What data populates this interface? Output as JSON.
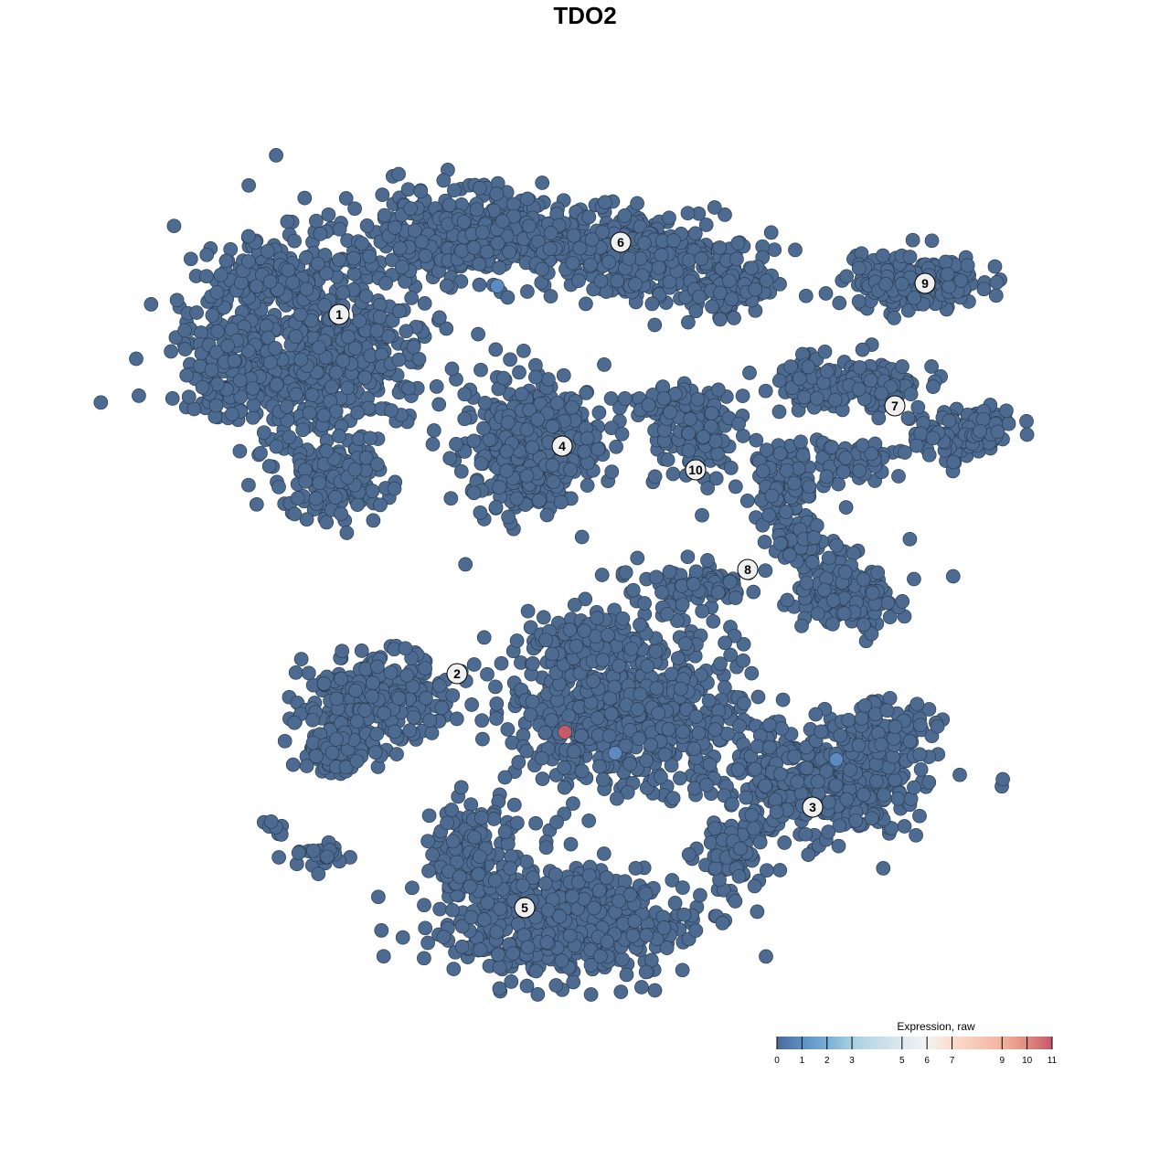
{
  "chart_data": {
    "type": "scatter",
    "title": "TDO2",
    "xlabel": "",
    "ylabel": "",
    "grid": false,
    "base_color": "#4d6b90",
    "clusters": [
      "1",
      "2",
      "3",
      "4",
      "5",
      "6",
      "7",
      "8",
      "9",
      "10"
    ],
    "highlighted_cells": [
      {
        "expression": 11,
        "color": "#c65a66"
      },
      {
        "expression": 1,
        "color": "#5b8bc0"
      },
      {
        "expression": 1,
        "color": "#5b8bc0"
      },
      {
        "expression": 1,
        "color": "#5b8bc0"
      }
    ],
    "legend": {
      "title": "Expression, raw",
      "placement": "bottom-right",
      "range": [
        0,
        11
      ],
      "ticks": [
        "0",
        "1",
        "2",
        "3",
        "5",
        "6",
        "7",
        "9",
        "10",
        "11"
      ],
      "tick_values": [
        0,
        1,
        2,
        3,
        5,
        6,
        7,
        9,
        10,
        11
      ],
      "colors": [
        "#4a6a9a",
        "#5b8fc3",
        "#79aed3",
        "#a8cfe2",
        "#dde9f0",
        "#f5f3f2",
        "#fbdccd",
        "#f2b49d",
        "#e08b80",
        "#c6576a"
      ]
    }
  }
}
